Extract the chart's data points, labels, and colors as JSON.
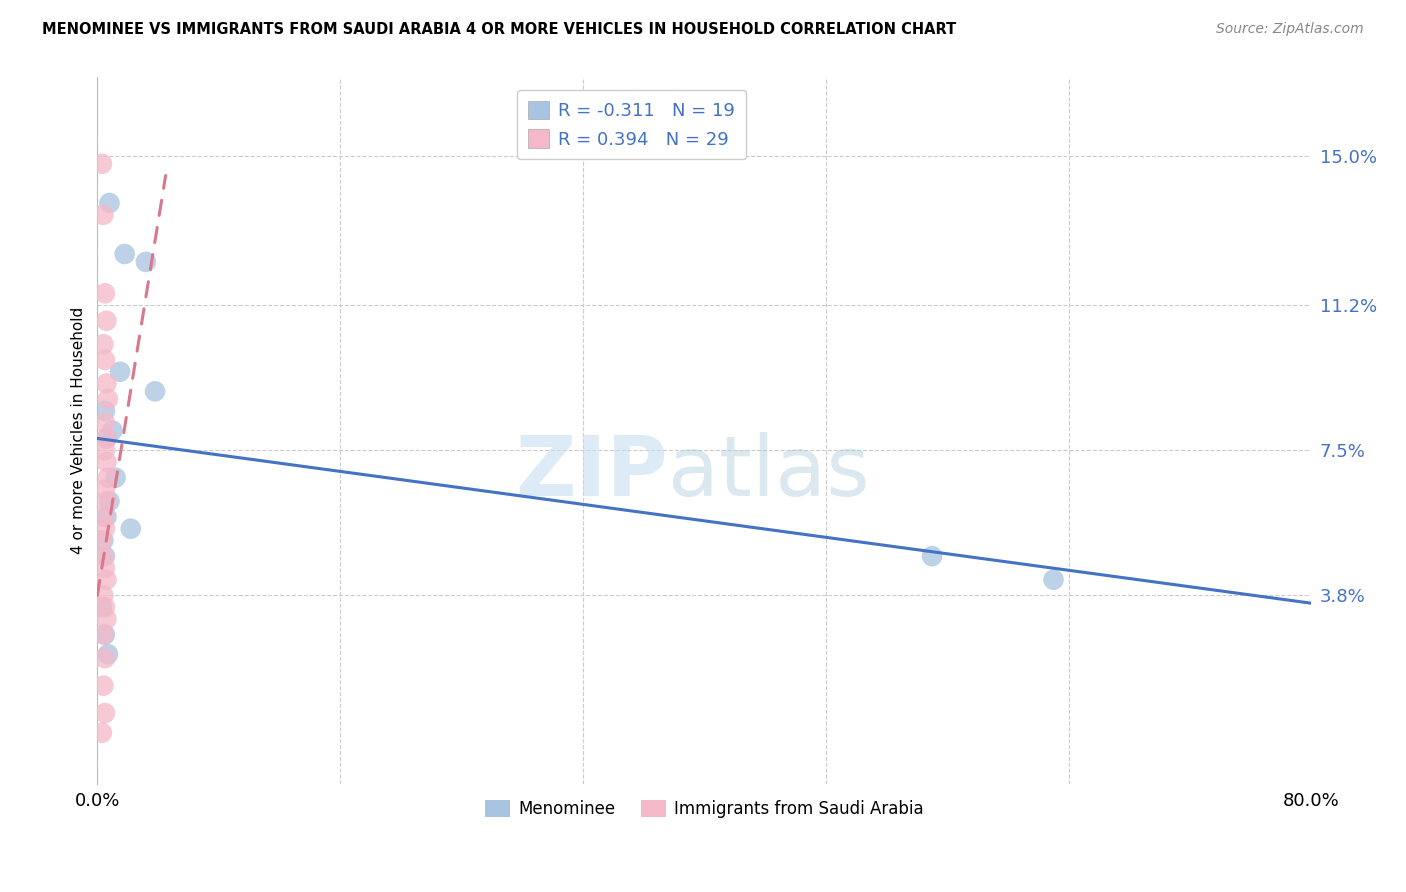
{
  "title": "MENOMINEE VS IMMIGRANTS FROM SAUDI ARABIA 4 OR MORE VEHICLES IN HOUSEHOLD CORRELATION CHART",
  "source": "Source: ZipAtlas.com",
  "ylabel": "4 or more Vehicles in Household",
  "y_tick_values": [
    3.8,
    7.5,
    11.2,
    15.0
  ],
  "x_min": 0.0,
  "x_max": 80.0,
  "y_min": -1.0,
  "y_max": 17.0,
  "legend_label1": "Menominee",
  "legend_label2": "Immigrants from Saudi Arabia",
  "blue_line_x": [
    0.0,
    80.0
  ],
  "blue_line_y": [
    7.8,
    3.6
  ],
  "pink_line_x": [
    0.0,
    4.5
  ],
  "pink_line_y": [
    3.8,
    14.5
  ],
  "blue_scatter_x": [
    0.8,
    1.8,
    3.2,
    1.5,
    0.5,
    0.6,
    1.0,
    3.8,
    55.0,
    63.0,
    0.4,
    0.5,
    0.6,
    0.8,
    1.2,
    2.2,
    0.3,
    0.5,
    0.7
  ],
  "blue_scatter_y": [
    13.8,
    12.5,
    12.3,
    9.5,
    8.5,
    7.8,
    8.0,
    9.0,
    4.8,
    4.2,
    5.2,
    4.8,
    5.8,
    6.2,
    6.8,
    5.5,
    3.5,
    2.8,
    2.3
  ],
  "pink_scatter_x": [
    0.3,
    0.4,
    0.5,
    0.6,
    0.4,
    0.5,
    0.6,
    0.7,
    0.5,
    0.6,
    0.5,
    0.6,
    0.7,
    0.5,
    0.6,
    0.4,
    0.5,
    0.3,
    0.4,
    0.5,
    0.6,
    0.4,
    0.5,
    0.6,
    0.4,
    0.5,
    0.4,
    0.5,
    0.3
  ],
  "pink_scatter_y": [
    14.8,
    13.5,
    11.5,
    10.8,
    10.2,
    9.8,
    9.2,
    8.8,
    8.2,
    7.8,
    7.5,
    7.2,
    6.8,
    6.5,
    6.2,
    5.8,
    5.5,
    5.2,
    4.8,
    4.5,
    4.2,
    3.8,
    3.5,
    3.2,
    2.8,
    2.2,
    1.5,
    0.8,
    0.3
  ],
  "blue_dot_color": "#a8c4e0",
  "pink_dot_color": "#f4b8c8",
  "blue_line_color": "#4472c4",
  "pink_line_color": "#d9788a",
  "watermark_zip": "ZIP",
  "watermark_atlas": "atlas",
  "background_color": "#ffffff",
  "grid_color": "#cccccc",
  "x_grid_positions": [
    0,
    16,
    32,
    48,
    64,
    80
  ],
  "legend1_R": "R = -0.311",
  "legend1_N": "N = 19",
  "legend2_R": "R = 0.394",
  "legend2_N": "N = 29"
}
